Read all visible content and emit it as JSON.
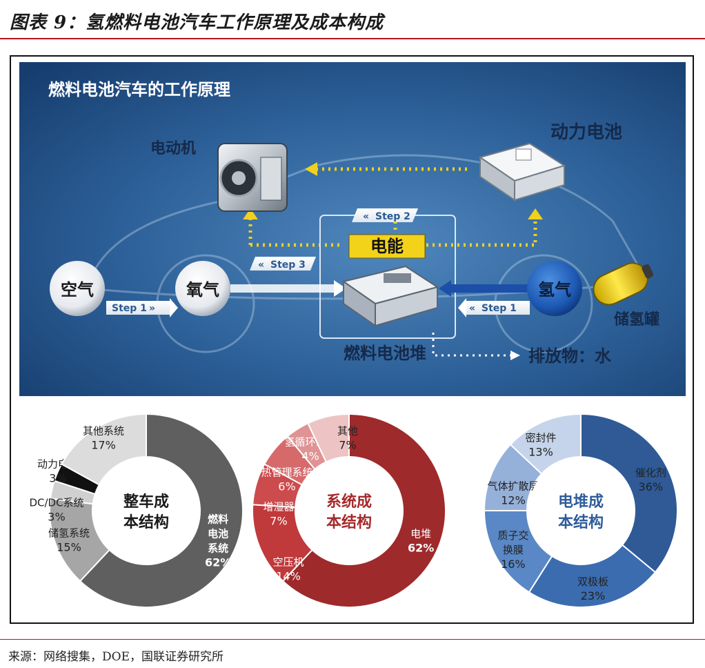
{
  "header": {
    "title": "图表 9：氢燃料电池汽车工作原理及成本构成"
  },
  "scene": {
    "title": "燃料电池汽车的工作原理",
    "motor": "电动机",
    "battery": "动力电池",
    "air": "空气",
    "oxygen": "氧气",
    "hydrogen": "氢气",
    "tank": "储氢罐",
    "stack": "燃料电池堆",
    "exhaust": "排放物：水",
    "energy": "电能",
    "step1_left": "Step 1",
    "step1_right": "Step 1",
    "step2": "Step 2",
    "step3": "Step 3"
  },
  "colors": {
    "title_rule": "#b5121b",
    "vehicle_center": "#6c7987",
    "system_center": "#a52a2a",
    "stack_center": "#2e5c9a",
    "energy_box": "#f3d21a",
    "arrow_yellow": "#f2d11d"
  },
  "donuts": {
    "vehicle": {
      "center_line1": "整车成",
      "center_line2": "本结构",
      "segments": [
        {
          "name_lines": [
            "燃料",
            "电池",
            "系统"
          ],
          "pct": "62%",
          "value": 62,
          "color": "#5f5f5f"
        },
        {
          "name_lines": [
            "储氢系统"
          ],
          "pct": "15%",
          "value": 15,
          "color": "#a6a6a6"
        },
        {
          "name_lines": [
            "DC/DC系统"
          ],
          "pct": "3%",
          "value": 3,
          "color": "#d0d0d0"
        },
        {
          "name_lines": [
            "动力电池"
          ],
          "pct": "3%",
          "value": 3,
          "color": "#111111"
        },
        {
          "name_lines": [
            "其他系统"
          ],
          "pct": "17%",
          "value": 17,
          "color": "#dcdcdc"
        }
      ]
    },
    "system": {
      "center_line1": "系统成",
      "center_line2": "本结构",
      "segments": [
        {
          "name_lines": [
            "电堆"
          ],
          "pct": "62%",
          "value": 62,
          "color": "#9e2a2b"
        },
        {
          "name_lines": [
            "空压机"
          ],
          "pct": "14%",
          "value": 14,
          "color": "#c0393b"
        },
        {
          "name_lines": [
            "增湿器"
          ],
          "pct": "7%",
          "value": 7,
          "color": "#cc4b4d"
        },
        {
          "name_lines": [
            "热管理系统"
          ],
          "pct": "6%",
          "value": 6,
          "color": "#d66a6b"
        },
        {
          "name_lines": [
            "氢循环系统"
          ],
          "pct": "4%",
          "value": 4,
          "color": "#e09394"
        },
        {
          "name_lines": [
            "其他"
          ],
          "pct": "7%",
          "value": 7,
          "color": "#eec3c3"
        }
      ]
    },
    "stack": {
      "center_line1": "电堆成",
      "center_line2": "本结构",
      "segments": [
        {
          "name_lines": [
            "催化剂"
          ],
          "pct": "36%",
          "value": 36,
          "color": "#2f5a96"
        },
        {
          "name_lines": [
            "双极板"
          ],
          "pct": "23%",
          "value": 23,
          "color": "#3b6cb0"
        },
        {
          "name_lines": [
            "质子交",
            "换膜"
          ],
          "pct": "16%",
          "value": 16,
          "color": "#5a88c6"
        },
        {
          "name_lines": [
            "气体扩散层"
          ],
          "pct": "12%",
          "value": 12,
          "color": "#95b1da"
        },
        {
          "name_lines": [
            "密封件"
          ],
          "pct": "13%",
          "value": 13,
          "color": "#c5d4ea"
        }
      ]
    }
  },
  "footer": {
    "source": "来源：网络搜集，DOE，国联证券研究所"
  }
}
